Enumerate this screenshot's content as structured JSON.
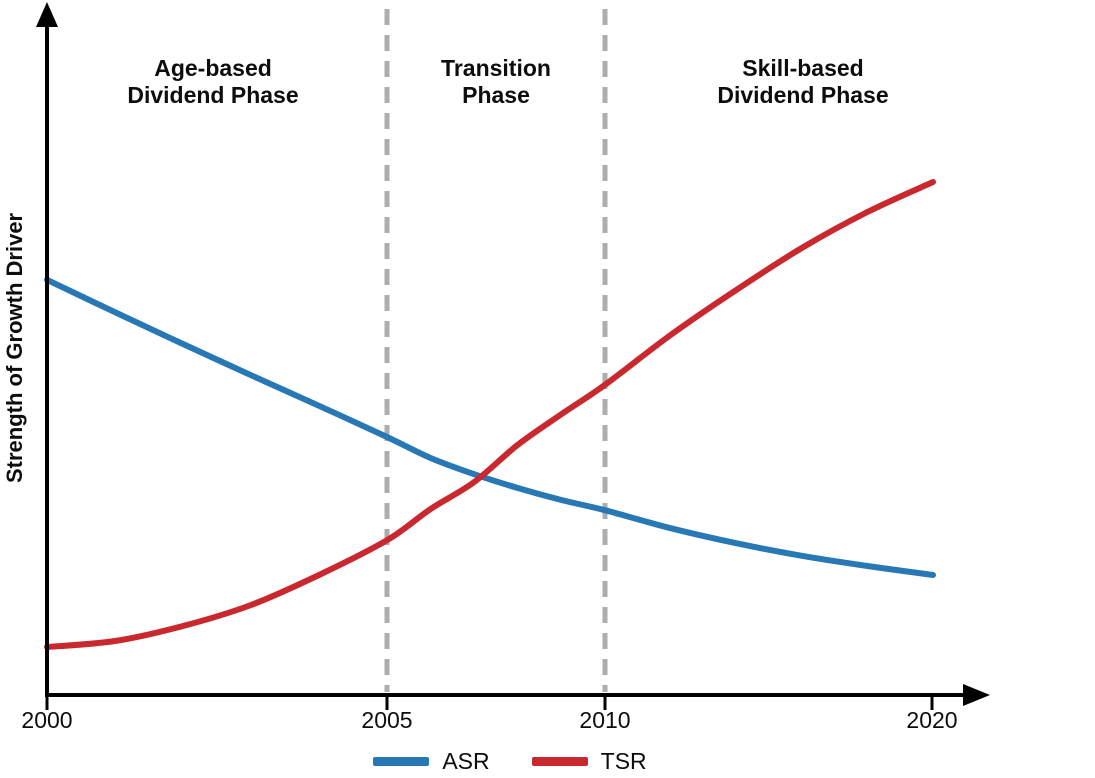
{
  "figure": {
    "y_axis_label": "Strength of Growth Driver",
    "phases": [
      {
        "lines": [
          "Age-based",
          "Dividend Phase"
        ]
      },
      {
        "lines": [
          "Transition",
          "Phase"
        ]
      },
      {
        "lines": [
          "Skill-based",
          "Dividend Phase"
        ]
      }
    ],
    "x_tick_labels": [
      "2000",
      "2005",
      "2010",
      "2020"
    ],
    "legend": [
      {
        "label": "ASR",
        "color": "#2878B5"
      },
      {
        "label": "TSR",
        "color": "#C9292E"
      }
    ]
  },
  "chart_data": {
    "type": "line",
    "title": "",
    "xlabel": "",
    "ylabel": "Strength of Growth Driver",
    "x_tick_years": [
      2000,
      2005,
      2010,
      2020
    ],
    "x_axis_spacing": "schematic-nonlinear",
    "y_range": [
      0,
      10
    ],
    "y_axis_numeric_labels": false,
    "grid": false,
    "legend_position": "bottom-center",
    "phase_boundaries_years": [
      2005,
      2010
    ],
    "phase_labels": [
      "Age-based Dividend Phase",
      "Transition Phase",
      "Skill-based Dividend Phase"
    ],
    "curves_cross": {
      "year": 2007.2,
      "value": 3.65
    },
    "series": [
      {
        "name": "ASR",
        "color": "#2878B5",
        "points": [
          [
            2000,
            6.92
          ],
          [
            2001,
            6.38
          ],
          [
            2002,
            5.85
          ],
          [
            2003,
            5.33
          ],
          [
            2004,
            4.82
          ],
          [
            2005,
            4.3
          ],
          [
            2006,
            3.95
          ],
          [
            2007,
            3.68
          ],
          [
            2008,
            3.45
          ],
          [
            2009,
            3.25
          ],
          [
            2010,
            3.08
          ],
          [
            2012,
            2.78
          ],
          [
            2014,
            2.53
          ],
          [
            2016,
            2.32
          ],
          [
            2018,
            2.15
          ],
          [
            2020,
            2.0
          ]
        ]
      },
      {
        "name": "TSR",
        "color": "#C9292E",
        "points": [
          [
            2000,
            0.8
          ],
          [
            2001,
            0.9
          ],
          [
            2002,
            1.15
          ],
          [
            2003,
            1.5
          ],
          [
            2004,
            2.0
          ],
          [
            2005,
            2.58
          ],
          [
            2006,
            3.1
          ],
          [
            2007,
            3.55
          ],
          [
            2008,
            4.17
          ],
          [
            2009,
            4.68
          ],
          [
            2010,
            5.17
          ],
          [
            2012,
            6.0
          ],
          [
            2014,
            6.75
          ],
          [
            2016,
            7.45
          ],
          [
            2018,
            8.05
          ],
          [
            2020,
            8.55
          ]
        ]
      }
    ]
  }
}
